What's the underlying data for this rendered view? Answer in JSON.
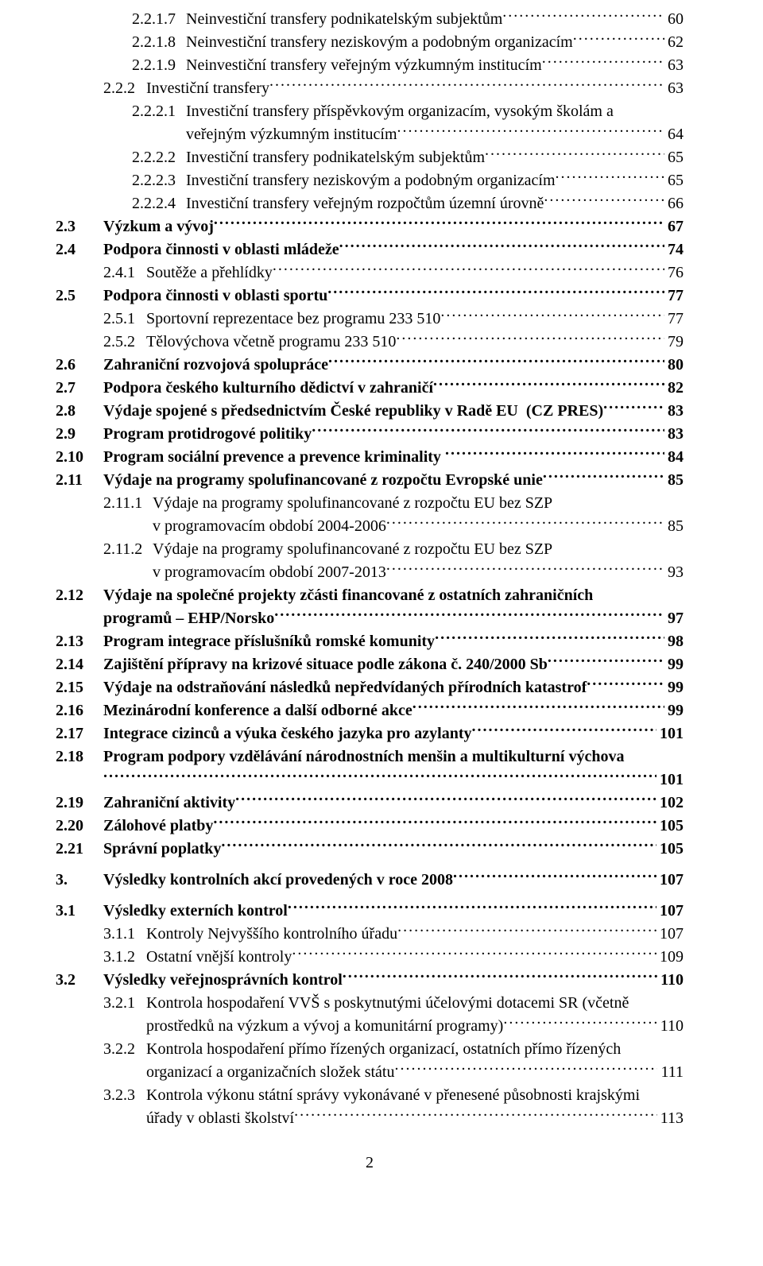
{
  "entries": [
    {
      "type": "single",
      "indent": 96,
      "num_width": 68,
      "num": "2.2.1.7",
      "title": "Neinvestiční transfery podnikatelským subjektům",
      "page": "60",
      "bold": false
    },
    {
      "type": "single",
      "indent": 96,
      "num_width": 68,
      "num": "2.2.1.8",
      "title": "Neinvestiční transfery neziskovým a podobným organizacím",
      "page": "62",
      "bold": false
    },
    {
      "type": "single",
      "indent": 96,
      "num_width": 68,
      "num": "2.2.1.9",
      "title": "Neinvestiční transfery veřejným výzkumným institucím",
      "page": "63",
      "bold": false
    },
    {
      "type": "single",
      "indent": 60,
      "num_width": 54,
      "num": "2.2.2",
      "title": "Investiční transfery",
      "page": "63",
      "bold": false
    },
    {
      "type": "multi",
      "indent": 96,
      "num_width": 68,
      "num": "2.2.2.1",
      "lines": [
        "Investiční transfery příspěvkovým organizacím, vysokým školám a",
        "veřejným výzkumným institucím"
      ],
      "page": "64",
      "bold": false
    },
    {
      "type": "single",
      "indent": 96,
      "num_width": 68,
      "num": "2.2.2.2",
      "title": "Investiční transfery podnikatelským subjektům",
      "page": "65",
      "bold": false
    },
    {
      "type": "single",
      "indent": 96,
      "num_width": 68,
      "num": "2.2.2.3",
      "title": "Investiční transfery neziskovým a podobným organizacím",
      "page": "65",
      "bold": false
    },
    {
      "type": "single",
      "indent": 96,
      "num_width": 68,
      "num": "2.2.2.4",
      "title": "Investiční transfery veřejným rozpočtům územní úrovně",
      "page": "66",
      "bold": false
    },
    {
      "type": "single",
      "indent": 0,
      "num_width": 60,
      "num": "2.3",
      "title": "Výzkum a vývoj",
      "page": "67",
      "bold": true
    },
    {
      "type": "single",
      "indent": 0,
      "num_width": 60,
      "num": "2.4",
      "title": "Podpora činnosti v oblasti mládeže",
      "page": "74",
      "bold": true
    },
    {
      "type": "single",
      "indent": 60,
      "num_width": 54,
      "num": "2.4.1",
      "title": "Soutěže a přehlídky",
      "page": "76",
      "bold": false
    },
    {
      "type": "single",
      "indent": 0,
      "num_width": 60,
      "num": "2.5",
      "title": "Podpora činnosti v oblasti sportu",
      "page": "77",
      "bold": true
    },
    {
      "type": "single",
      "indent": 60,
      "num_width": 54,
      "num": "2.5.1",
      "title": "Sportovní reprezentace bez programu 233 510",
      "page": "77",
      "bold": false
    },
    {
      "type": "single",
      "indent": 60,
      "num_width": 54,
      "num": "2.5.2",
      "title": "Tělovýchova včetně programu 233 510",
      "page": "79",
      "bold": false
    },
    {
      "type": "single",
      "indent": 0,
      "num_width": 60,
      "num": "2.6",
      "title": "Zahraniční rozvojová spolupráce",
      "page": "80",
      "bold": true
    },
    {
      "type": "single",
      "indent": 0,
      "num_width": 60,
      "num": "2.7",
      "title": "Podpora českého kulturního dědictví v zahraničí",
      "page": "82",
      "bold": true
    },
    {
      "type": "single",
      "indent": 0,
      "num_width": 60,
      "num": "2.8",
      "title": "Výdaje spojené s předsednictvím České republiky v Radě EU  (CZ PRES)",
      "page": "83",
      "bold": true
    },
    {
      "type": "single",
      "indent": 0,
      "num_width": 60,
      "num": "2.9",
      "title": "Program protidrogové politiky",
      "page": "83",
      "bold": true
    },
    {
      "type": "single",
      "indent": 0,
      "num_width": 60,
      "num": "2.10",
      "title": "Program sociální prevence a prevence kriminality ",
      "page": "84",
      "bold": true
    },
    {
      "type": "single",
      "indent": 0,
      "num_width": 60,
      "num": "2.11",
      "title": "Výdaje na programy spolufinancované z rozpočtu Evropské unie",
      "page": "85",
      "bold": true
    },
    {
      "type": "multi",
      "indent": 60,
      "num_width": 62,
      "num": "2.11.1",
      "lines": [
        "Výdaje na programy spolufinancované z rozpočtu EU bez SZP",
        "v programovacím období 2004-2006"
      ],
      "page": "85",
      "bold": false
    },
    {
      "type": "multi",
      "indent": 60,
      "num_width": 62,
      "num": "2.11.2",
      "lines": [
        "Výdaje na programy spolufinancované z rozpočtu EU bez SZP",
        "v programovacím období 2007-2013"
      ],
      "page": "93",
      "bold": false
    },
    {
      "type": "multi",
      "indent": 0,
      "num_width": 60,
      "num": "2.12",
      "lines": [
        "Výdaje na společné projekty zčásti financované z ostatních zahraničních",
        "programů – EHP/Norsko"
      ],
      "page": "97",
      "bold": true
    },
    {
      "type": "single",
      "indent": 0,
      "num_width": 60,
      "num": "2.13",
      "title": "Program integrace příslušníků romské komunity",
      "page": "98",
      "bold": true
    },
    {
      "type": "single",
      "indent": 0,
      "num_width": 60,
      "num": "2.14",
      "title": "Zajištění přípravy na krizové situace podle zákona č. 240/2000 Sb",
      "page": "99",
      "bold": true
    },
    {
      "type": "single",
      "indent": 0,
      "num_width": 60,
      "num": "2.15",
      "title": "Výdaje na odstraňování následků nepředvídaných přírodních katastrof",
      "page": "99",
      "bold": true
    },
    {
      "type": "single",
      "indent": 0,
      "num_width": 60,
      "num": "2.16",
      "title": "Mezinárodní konference a další odborné akce",
      "page": "99",
      "bold": true
    },
    {
      "type": "single",
      "indent": 0,
      "num_width": 60,
      "num": "2.17",
      "title": "Integrace cizinců a výuka českého jazyka pro azylanty",
      "page": "101",
      "bold": true
    },
    {
      "type": "multi",
      "indent": 0,
      "num_width": 60,
      "num": "2.18",
      "lines": [
        "Program podpory vzdělávání národnostních menšin a multikulturní výchova",
        ""
      ],
      "page": "101",
      "bold": true
    },
    {
      "type": "single",
      "indent": 0,
      "num_width": 60,
      "num": "2.19",
      "title": "Zahraniční aktivity",
      "page": "102",
      "bold": true
    },
    {
      "type": "single",
      "indent": 0,
      "num_width": 60,
      "num": "2.20",
      "title": "Zálohové platby",
      "page": "105",
      "bold": true
    },
    {
      "type": "single",
      "indent": 0,
      "num_width": 60,
      "num": "2.21",
      "title": "Správní poplatky",
      "page": "105",
      "bold": true
    },
    {
      "type": "spacer"
    },
    {
      "type": "single",
      "indent": 0,
      "num_width": 60,
      "num": "3.",
      "title": "Výsledky kontrolních akcí provedených v roce 2008",
      "page": "107",
      "bold": true
    },
    {
      "type": "spacer"
    },
    {
      "type": "single",
      "indent": 0,
      "num_width": 60,
      "num": "3.1",
      "title": "Výsledky externích kontrol",
      "page": "107",
      "bold": true
    },
    {
      "type": "single",
      "indent": 60,
      "num_width": 54,
      "num": "3.1.1",
      "title": "Kontroly Nejvyššího kontrolního úřadu",
      "page": "107",
      "bold": false
    },
    {
      "type": "single",
      "indent": 60,
      "num_width": 54,
      "num": "3.1.2",
      "title": "Ostatní vnější kontroly",
      "page": "109",
      "bold": false
    },
    {
      "type": "single",
      "indent": 0,
      "num_width": 60,
      "num": "3.2",
      "title": "Výsledky veřejnosprávních kontrol",
      "page": "110",
      "bold": true
    },
    {
      "type": "multi",
      "indent": 60,
      "num_width": 54,
      "num": "3.2.1",
      "lines": [
        "Kontrola hospodaření VVŠ s poskytnutými účelovými dotacemi SR (včetně",
        "prostředků na výzkum a vývoj a komunitární programy)"
      ],
      "page": "110",
      "bold": false
    },
    {
      "type": "multi",
      "indent": 60,
      "num_width": 54,
      "num": "3.2.2",
      "lines": [
        "Kontrola hospodaření přímo řízených organizací, ostatních přímo řízených",
        "organizací a organizačních složek státu"
      ],
      "page": "111",
      "bold": false
    },
    {
      "type": "multi",
      "indent": 60,
      "num_width": 54,
      "num": "3.2.3",
      "lines": [
        "Kontrola výkonu státní správy vykonávané v přenesené působnosti krajskými",
        "úřady v oblasti školství"
      ],
      "page": "113",
      "bold": false
    }
  ],
  "page_number": "2"
}
